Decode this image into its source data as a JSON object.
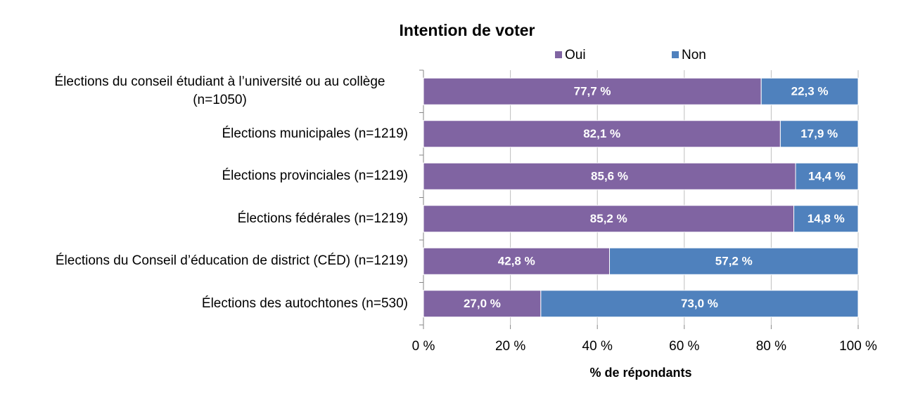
{
  "chart_data": {
    "type": "stacked-bar-horizontal",
    "title": "Intention de voter",
    "categories": [
      "Élections du conseil étudiant à l’université ou au collège (n=1050)",
      "Élections municipales (n=1219)",
      "Élections provinciales (n=1219)",
      "Élections fédérales (n=1219)",
      "Élections du Conseil d’éducation de district (CÉD) (n=1219)",
      "Élections des autochtones (n=530)"
    ],
    "series": [
      {
        "name": "Oui",
        "color": "#8064a2",
        "values": [
          77.7,
          82.1,
          85.6,
          85.2,
          42.8,
          27.0
        ],
        "value_labels": [
          "77,7 %",
          "82,1 %",
          "85,6 %",
          "85,2 %",
          "42,8 %",
          "27,0 %"
        ]
      },
      {
        "name": "Non",
        "color": "#4f81bd",
        "values": [
          22.3,
          17.9,
          14.4,
          14.8,
          57.2,
          73.0
        ],
        "value_labels": [
          "22,3 %",
          "17,9 %",
          "14,4 %",
          "14,8 %",
          "57,2 %",
          "73,0 %"
        ]
      }
    ],
    "xlim": [
      0,
      100
    ],
    "xticks": [
      {
        "value": 0,
        "label": "0 %"
      },
      {
        "value": 20,
        "label": "20 %"
      },
      {
        "value": 40,
        "label": "40 %"
      },
      {
        "value": 60,
        "label": "60 %"
      },
      {
        "value": 80,
        "label": "80 %"
      },
      {
        "value": 100,
        "label": "100 %"
      }
    ],
    "x_label": "% de répondants",
    "grid": true,
    "legend": "top"
  }
}
